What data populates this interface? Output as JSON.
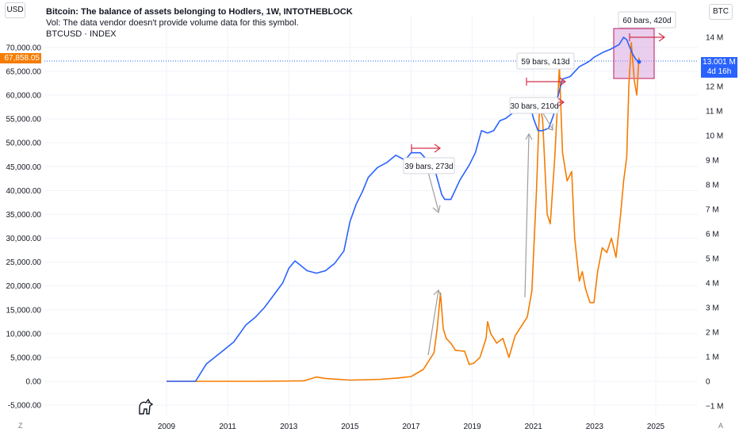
{
  "header": {
    "title": "Bitcoin: The balance of assets belonging to Hodlers, 1W, INTOTHEBLOCK",
    "vol_note": "Vol: The data vendor doesn't provide volume data for this symbol.",
    "symbol": "BTCUSD · INDEX"
  },
  "left_unit": "USD",
  "right_unit": "BTC",
  "price_tag": "67,858.05",
  "btc_tag": {
    "value": "13.001 M",
    "countdown": "4d 16h"
  },
  "corner_left": "Z",
  "corner_right": "A",
  "colors": {
    "btc_price": "#f57c00",
    "hodler_balance": "#2962ff",
    "arrow": "#d3304a",
    "gray_arrow": "#9e9e9e",
    "highlight": "#ce93d8"
  },
  "chart_data": {
    "type": "line",
    "x_ticks": [
      "2009",
      "2011",
      "2013",
      "2015",
      "2017",
      "2019",
      "2021",
      "2023",
      "2025"
    ],
    "y_left_ticks": [
      "70,000.00",
      "65,000.00",
      "60,000.00",
      "55,000.00",
      "50,000.00",
      "45,000.00",
      "40,000.00",
      "35,000.00",
      "30,000.00",
      "25,000.00",
      "20,000.00",
      "15,000.00",
      "10,000.00",
      "5,000.00",
      "0.00",
      "-5,000.00"
    ],
    "y_right_ticks": [
      "14 M",
      "13 M",
      "12 M",
      "11 M",
      "10 M",
      "9 M",
      "8 M",
      "7 M",
      "6 M",
      "5 M",
      "4 M",
      "3 M",
      "2 M",
      "1 M",
      "0",
      "−1 M"
    ],
    "ylim_left": [
      -6000,
      73000
    ],
    "ylim_right": [
      -1.2,
      14.6
    ],
    "series": [
      {
        "name": "BTCUSD",
        "axis": "left",
        "points": [
          [
            2009.0,
            0
          ],
          [
            2010.5,
            0
          ],
          [
            2012.0,
            5
          ],
          [
            2013.5,
            100
          ],
          [
            2013.9,
            900
          ],
          [
            2014.2,
            600
          ],
          [
            2015.0,
            250
          ],
          [
            2016.0,
            420
          ],
          [
            2016.5,
            650
          ],
          [
            2017.0,
            1000
          ],
          [
            2017.4,
            2500
          ],
          [
            2017.6,
            4500
          ],
          [
            2017.75,
            6000
          ],
          [
            2017.85,
            11000
          ],
          [
            2017.96,
            18500
          ],
          [
            2018.05,
            11000
          ],
          [
            2018.15,
            9000
          ],
          [
            2018.3,
            8000
          ],
          [
            2018.45,
            6500
          ],
          [
            2018.6,
            6400
          ],
          [
            2018.75,
            6300
          ],
          [
            2018.9,
            3500
          ],
          [
            2019.05,
            3800
          ],
          [
            2019.25,
            5000
          ],
          [
            2019.45,
            9000
          ],
          [
            2019.5,
            12500
          ],
          [
            2019.6,
            10000
          ],
          [
            2019.8,
            8000
          ],
          [
            2020.0,
            9000
          ],
          [
            2020.2,
            5000
          ],
          [
            2020.4,
            9500
          ],
          [
            2020.6,
            11500
          ],
          [
            2020.8,
            13500
          ],
          [
            2020.95,
            19000
          ],
          [
            2021.1,
            40000
          ],
          [
            2021.2,
            58000
          ],
          [
            2021.3,
            55000
          ],
          [
            2021.45,
            35000
          ],
          [
            2021.55,
            33000
          ],
          [
            2021.7,
            47000
          ],
          [
            2021.85,
            66000
          ],
          [
            2021.95,
            48000
          ],
          [
            2022.1,
            42000
          ],
          [
            2022.25,
            44000
          ],
          [
            2022.35,
            30000
          ],
          [
            2022.5,
            21000
          ],
          [
            2022.6,
            23000
          ],
          [
            2022.7,
            19500
          ],
          [
            2022.85,
            16500
          ],
          [
            2022.98,
            16500
          ],
          [
            2023.1,
            23000
          ],
          [
            2023.25,
            28000
          ],
          [
            2023.4,
            27000
          ],
          [
            2023.55,
            30000
          ],
          [
            2023.7,
            26000
          ],
          [
            2023.85,
            35000
          ],
          [
            2023.95,
            42000
          ],
          [
            2024.05,
            47000
          ],
          [
            2024.12,
            62000
          ],
          [
            2024.2,
            71000
          ],
          [
            2024.3,
            63000
          ],
          [
            2024.38,
            60000
          ],
          [
            2024.45,
            67858
          ]
        ]
      },
      {
        "name": "Hodler balance",
        "axis": "right",
        "points": [
          [
            2009.0,
            0
          ],
          [
            2009.95,
            0
          ],
          [
            2010.1,
            0.3
          ],
          [
            2010.3,
            0.7
          ],
          [
            2010.6,
            1.0
          ],
          [
            2010.9,
            1.3
          ],
          [
            2011.2,
            1.6
          ],
          [
            2011.6,
            2.3
          ],
          [
            2011.9,
            2.6
          ],
          [
            2012.2,
            3.0
          ],
          [
            2012.5,
            3.5
          ],
          [
            2012.8,
            4.0
          ],
          [
            2013.0,
            4.6
          ],
          [
            2013.2,
            4.9
          ],
          [
            2013.4,
            4.7
          ],
          [
            2013.6,
            4.5
          ],
          [
            2013.9,
            4.4
          ],
          [
            2014.2,
            4.5
          ],
          [
            2014.5,
            4.8
          ],
          [
            2014.8,
            5.3
          ],
          [
            2015.0,
            6.5
          ],
          [
            2015.2,
            7.2
          ],
          [
            2015.4,
            7.7
          ],
          [
            2015.6,
            8.3
          ],
          [
            2015.9,
            8.7
          ],
          [
            2016.2,
            8.9
          ],
          [
            2016.5,
            9.2
          ],
          [
            2016.8,
            9.0
          ],
          [
            2017.0,
            9.3
          ],
          [
            2017.3,
            9.3
          ],
          [
            2017.6,
            8.9
          ],
          [
            2017.8,
            8.5
          ],
          [
            2018.0,
            7.6
          ],
          [
            2018.1,
            7.4
          ],
          [
            2018.3,
            7.4
          ],
          [
            2018.6,
            8.2
          ],
          [
            2018.9,
            8.8
          ],
          [
            2019.1,
            9.3
          ],
          [
            2019.3,
            10.2
          ],
          [
            2019.5,
            10.1
          ],
          [
            2019.7,
            10.2
          ],
          [
            2019.9,
            10.6
          ],
          [
            2020.1,
            10.7
          ],
          [
            2020.3,
            10.9
          ],
          [
            2020.5,
            11.0
          ],
          [
            2020.7,
            11.3
          ],
          [
            2020.85,
            11.4
          ],
          [
            2021.0,
            10.7
          ],
          [
            2021.15,
            10.2
          ],
          [
            2021.3,
            10.2
          ],
          [
            2021.5,
            10.3
          ],
          [
            2021.65,
            10.8
          ],
          [
            2021.8,
            11.6
          ],
          [
            2021.95,
            12.3
          ],
          [
            2022.2,
            12.4
          ],
          [
            2022.5,
            12.8
          ],
          [
            2022.8,
            13.0
          ],
          [
            2023.0,
            13.2
          ],
          [
            2023.3,
            13.4
          ],
          [
            2023.5,
            13.5
          ],
          [
            2023.8,
            13.7
          ],
          [
            2023.95,
            14.0
          ],
          [
            2024.05,
            13.9
          ],
          [
            2024.15,
            13.6
          ],
          [
            2024.25,
            13.3
          ],
          [
            2024.35,
            13.1
          ],
          [
            2024.45,
            13.001
          ]
        ]
      }
    ],
    "annotations": [
      "39 bars, 273d",
      "30 bars, 210d",
      "59 bars, 413d",
      "60 bars, 420d"
    ]
  }
}
